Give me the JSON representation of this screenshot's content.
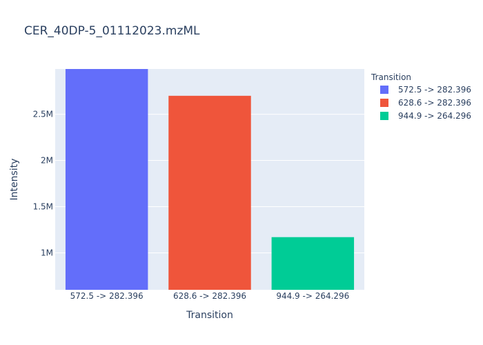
{
  "chart_data": {
    "type": "bar",
    "title": "CER_40DP-5_01112023.mzML",
    "xlabel": "Transition",
    "ylabel": "Intensity",
    "categories": [
      "572.5 -> 282.396",
      "628.6 -> 282.396",
      "944.9 -> 264.296"
    ],
    "values": [
      3000000,
      2700000,
      1170000
    ],
    "ylim": [
      600000,
      2990000
    ],
    "yticks": [
      1000000,
      1500000,
      2000000,
      2500000
    ],
    "ytick_labels": [
      "1M",
      "1.5M",
      "2M",
      "2.5M"
    ],
    "colors": [
      "#636efa",
      "#ef553b",
      "#00cc96"
    ],
    "grid": true,
    "legend": {
      "title": "Transition",
      "position": "top-right",
      "entries": [
        "572.5 -> 282.396",
        "628.6 -> 282.396",
        "944.9 -> 264.296"
      ]
    },
    "plot_background": "#e5ecf6"
  }
}
